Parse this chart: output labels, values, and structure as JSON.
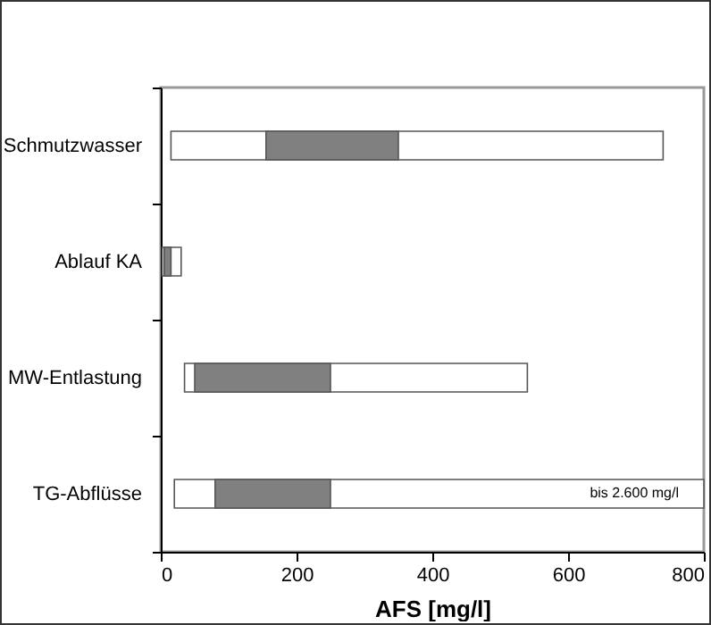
{
  "chart_data": {
    "type": "bar",
    "orientation": "horizontal",
    "xlabel": "AFS [mg/l]",
    "categories": [
      "Schmutzwasser",
      "Ablauf KA",
      "MW-Entlastung",
      "TG-Abflüsse"
    ],
    "series": [
      {
        "color": "#ffffff",
        "base": [
          15,
          2,
          35,
          20
        ],
        "values": [
          725,
          28,
          505,
          780
        ]
      },
      {
        "color": "#808080",
        "base": [
          155,
          5,
          50,
          80
        ],
        "values": [
          195,
          10,
          200,
          170
        ]
      }
    ],
    "xlim": [
      0,
      800
    ],
    "xticks": [
      0,
      200,
      400,
      600,
      800
    ],
    "annotations": [
      "bis 2.600 mg/l"
    ]
  }
}
